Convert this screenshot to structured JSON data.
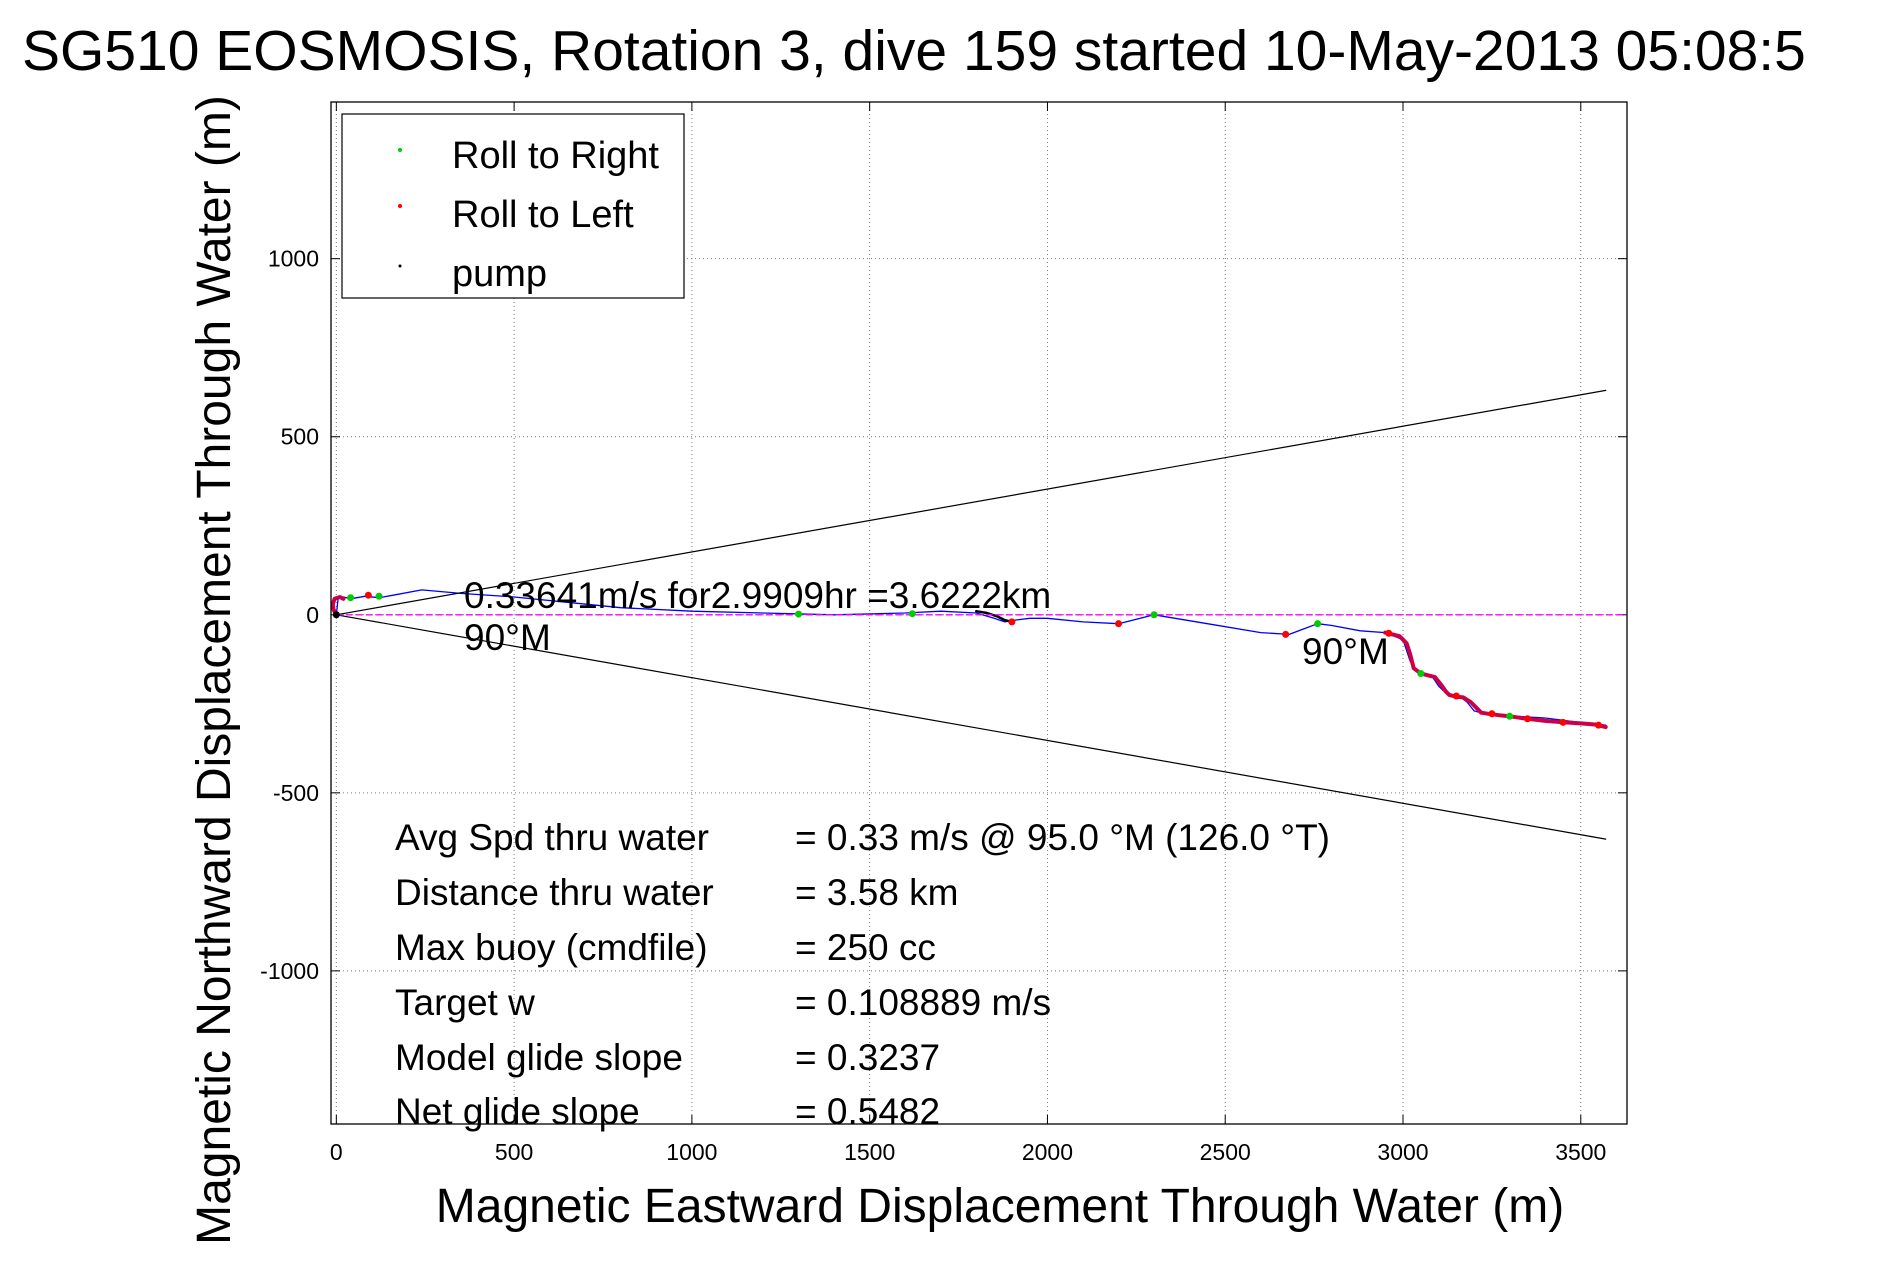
{
  "chart_data": {
    "type": "line",
    "title": "SG510 EOSMOSIS, Rotation 3, dive 159 started 10-May-2013 05:08:5",
    "xlabel": "Magnetic Eastward Displacement Through Water (m)",
    "ylabel": "Magnetic Northward Displacement Through Water (m)",
    "xlim": [
      -15,
      3630
    ],
    "ylim": [
      -1430,
      1440
    ],
    "xticks": [
      0,
      500,
      1000,
      1500,
      2000,
      2500,
      3000,
      3500
    ],
    "yticks": [
      -1000,
      -500,
      0,
      500,
      1000
    ],
    "xtick_labels": [
      "0",
      "500",
      "1000",
      "1500",
      "2000",
      "2500",
      "3000",
      "3500"
    ],
    "ytick_labels": [
      "-1000",
      "-500",
      "0",
      "500",
      "1000"
    ],
    "grid": true,
    "legend_position": "top-left",
    "legend": [
      {
        "label": "Roll to Right",
        "color": "#00cc00"
      },
      {
        "label": "Roll to Left",
        "color": "#ff0000"
      },
      {
        "label": "pump",
        "color": "#000000"
      }
    ],
    "series": [
      {
        "color": "#0000ff",
        "x": [
          0,
          5,
          20,
          40,
          80,
          120,
          160,
          240,
          350,
          500,
          650,
          800,
          1000,
          1200,
          1400,
          1600,
          1700,
          1800,
          1850,
          1880,
          1910,
          1950,
          2000,
          2100,
          2200,
          2300,
          2450,
          2600,
          2680,
          2720,
          2760,
          2800,
          2880,
          2950,
          3000,
          3020,
          3040,
          3060,
          3080,
          3100,
          3120,
          3140,
          3160,
          3180,
          3200,
          3220,
          3260,
          3320,
          3400,
          3480,
          3530,
          3570
        ],
        "y": [
          0,
          45,
          50,
          45,
          52,
          48,
          55,
          70,
          60,
          50,
          35,
          20,
          10,
          5,
          0,
          5,
          10,
          5,
          -10,
          -20,
          -15,
          -10,
          -10,
          -20,
          -25,
          0,
          -25,
          -50,
          -55,
          -40,
          -25,
          -30,
          -45,
          -50,
          -70,
          -130,
          -160,
          -165,
          -170,
          -200,
          -220,
          -225,
          -230,
          -245,
          -270,
          -275,
          -280,
          -285,
          -290,
          -300,
          -305,
          -310
        ]
      },
      {
        "color": "#cc0044",
        "x": [
          0,
          -8,
          -10,
          -5,
          10,
          20
        ],
        "y": [
          0,
          15,
          30,
          45,
          50,
          45
        ]
      },
      {
        "color": "#cc0044",
        "x": [
          2950,
          2990,
          3010,
          3020,
          3030,
          3050,
          3070,
          3090,
          3110,
          3120,
          3130,
          3150,
          3170,
          3190,
          3210,
          3220,
          3240,
          3270,
          3300,
          3350,
          3400,
          3450,
          3500,
          3540,
          3570
        ],
        "y": [
          -50,
          -60,
          -80,
          -110,
          -150,
          -165,
          -170,
          -175,
          -200,
          -215,
          -225,
          -230,
          -232,
          -245,
          -265,
          -275,
          -278,
          -282,
          -285,
          -292,
          -298,
          -302,
          -305,
          -308,
          -315
        ]
      },
      {
        "color": "#000000",
        "x": [
          1800,
          1830,
          1860,
          1880,
          1900
        ],
        "y": [
          10,
          5,
          -5,
          -15,
          -20
        ]
      },
      {
        "color": "#000000",
        "x": [
          0,
          3570
        ],
        "y": [
          0,
          630
        ]
      },
      {
        "color": "#000000",
        "x": [
          0,
          3570
        ],
        "y": [
          0,
          -630
        ]
      },
      {
        "color": "#ff00ff",
        "x": [
          0,
          3630
        ],
        "y": [
          0,
          0
        ]
      }
    ],
    "markers": {
      "roll_right": {
        "x": [
          40,
          120,
          1300,
          1620,
          2300,
          2760,
          3050,
          3300
        ],
        "y": [
          48,
          52,
          2,
          3,
          0,
          -25,
          -165,
          -285
        ]
      },
      "roll_left": {
        "x": [
          90,
          1900,
          2200,
          2670,
          2960,
          3150,
          3250,
          3350,
          3450,
          3550
        ],
        "y": [
          55,
          -20,
          -25,
          -55,
          -52,
          -228,
          -278,
          -292,
          -302,
          -310
        ]
      },
      "pump": {
        "x": [
          0
        ],
        "y": [
          0
        ]
      }
    }
  },
  "annotations": {
    "line1": "0.33641m/s for2.9909hr =3.6222km",
    "line2": "90°M",
    "end_label": "90°M"
  },
  "stats": [
    {
      "label": "Avg Spd thru water",
      "value": "=  0.33 m/s @  95.0 °M (126.0 °T)"
    },
    {
      "label": "Distance thru water",
      "value": "=  3.58 km"
    },
    {
      "label": "Max buoy (cmdfile)",
      "value": "= 250 cc"
    },
    {
      "label": "Target w",
      "value": "= 0.108889 m/s"
    },
    {
      "label": "Model glide slope",
      "value": "= 0.3237"
    },
    {
      "label": "Net glide slope",
      "value": "= 0.5482"
    }
  ]
}
